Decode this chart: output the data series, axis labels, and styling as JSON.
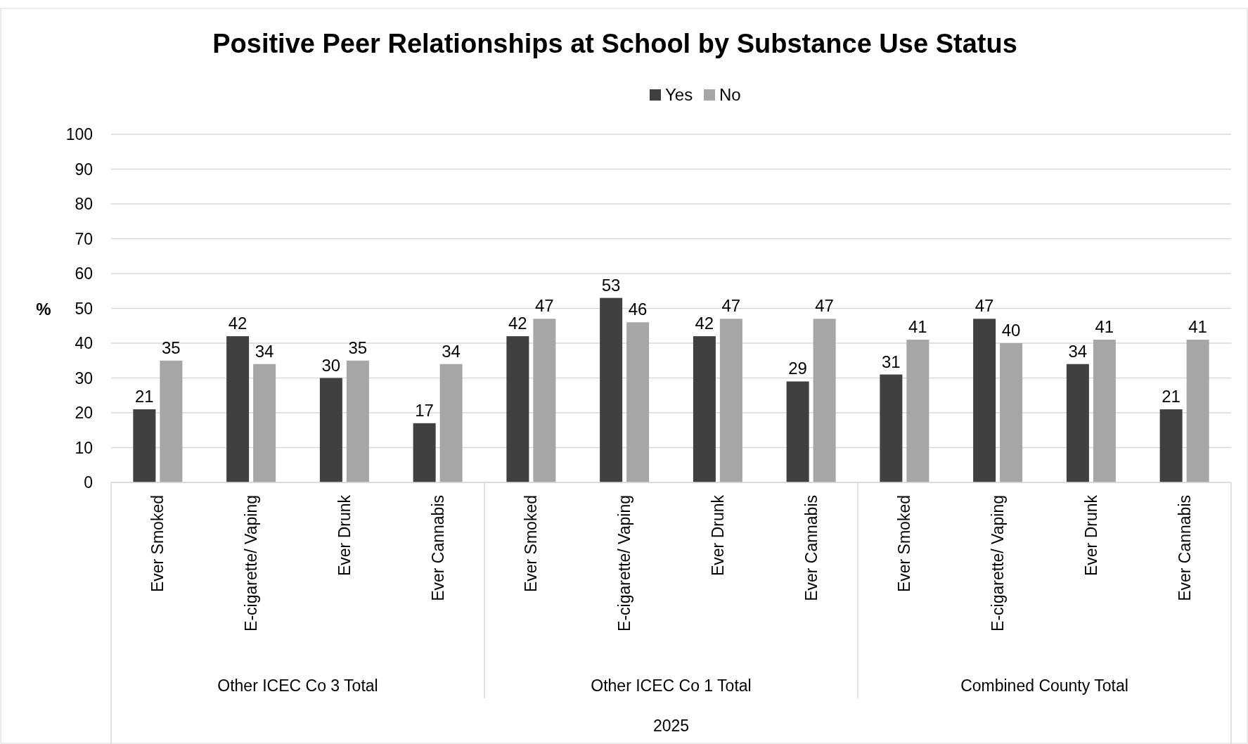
{
  "chart_data": {
    "type": "bar",
    "title": "Positive Peer Relationships at School by Substance Use Status",
    "ylabel": "%",
    "categories": [
      "Ever Smoked",
      "E-cigarette/ Vaping",
      "Ever Drunk",
      "Ever Cannabis",
      "Ever Smoked",
      "E-cigarette/ Vaping",
      "Ever Drunk",
      "Ever Cannabis",
      "Ever Smoked",
      "E-cigarette/ Vaping",
      "Ever Drunk",
      "Ever Cannabis"
    ],
    "series": [
      {
        "name": "Yes",
        "color": "#404040",
        "values": [
          21,
          42,
          30,
          17,
          42,
          53,
          42,
          29,
          31,
          47,
          34,
          21
        ]
      },
      {
        "name": "No",
        "color": "#a6a6a6",
        "values": [
          35,
          34,
          35,
          34,
          47,
          46,
          47,
          47,
          41,
          40,
          41,
          41
        ]
      }
    ],
    "annotations": [
      "Other ICEC Co 3 Total",
      "Other ICEC Co 1 Total",
      "Combined County Total",
      "2025"
    ],
    "ylim": [
      0,
      100
    ],
    "yticks": [
      0,
      10,
      20,
      30,
      40,
      50,
      60,
      70,
      80,
      90,
      100
    ],
    "grid": "y",
    "legend": "top",
    "data_labels": true
  }
}
